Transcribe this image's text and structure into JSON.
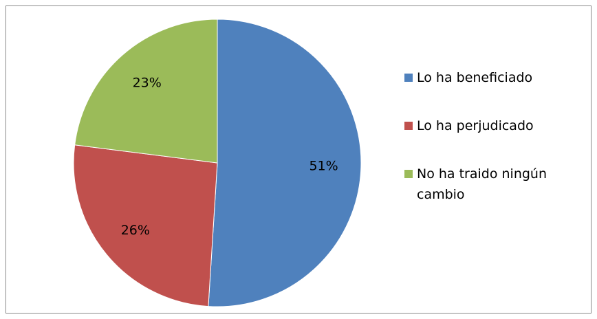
{
  "chart_data": {
    "type": "pie",
    "categories": [
      "Lo ha beneficiado",
      "Lo ha perjudicado",
      "No ha traido ningún cambio"
    ],
    "values": [
      51,
      26,
      23
    ],
    "value_labels": [
      "51%",
      "26%",
      "23%"
    ],
    "colors": [
      "#4f81bd",
      "#c0504d",
      "#9bbb59"
    ],
    "legend": "right"
  }
}
